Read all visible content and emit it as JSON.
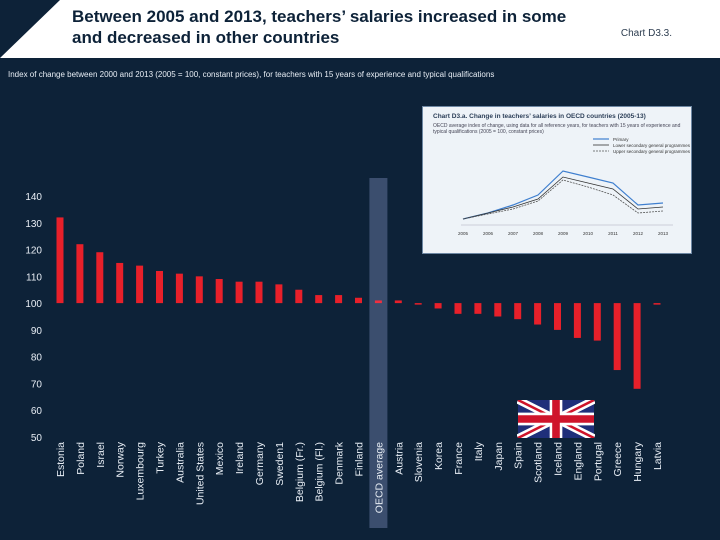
{
  "header": {
    "title": "Between 2005 and 2013, teachers’ salaries increased in some and decreased in other countries",
    "chart_id": "Chart D3.3."
  },
  "subtitle": "Index of change between 2000 and 2013 (2005 = 100, constant prices), for teachers with 15 years of experience and typical qualifications",
  "inset": {
    "title": "Chart D3.a.  Change in teachers’ salaries in OECD countries (2005-13)",
    "subtitle": "OECD average index of change, using data for all reference years, for teachers with 15 years of experience and typical qualifications (2005 = 100, constant prices)",
    "legend": [
      "Primary",
      "Lower secondary general programmes",
      "Upper secondary general programmes"
    ],
    "x_labels": [
      "2005",
      "2006",
      "2007",
      "2008",
      "2009",
      "2010",
      "2011",
      "2012",
      "2013"
    ]
  },
  "colors": {
    "bar": "#e8202a",
    "oecd_bar": "#f03040",
    "oecd_highlight": "#3b4e6e",
    "axis_text": "#e8eef5",
    "background": "#0d2238"
  },
  "icons": {
    "flag": "uk-flag-icon"
  },
  "chart_data": {
    "type": "bar",
    "title": "Between 2005 and 2013, teachers’ salaries increased in some and decreased in other countries",
    "categories": [
      "Estonia",
      "Poland",
      "Israel",
      "Norway",
      "Luxembourg",
      "Turkey",
      "Australia",
      "United States",
      "Mexico",
      "Ireland",
      "Germany",
      "Sweden1",
      "Belgium (Fr.)",
      "Belgium (Fl.)",
      "Denmark",
      "Finland",
      "OECD average",
      "Austria",
      "Slovenia",
      "Korea",
      "France",
      "Italy",
      "Japan",
      "Spain",
      "Scotland",
      "Iceland",
      "England",
      "Portugal",
      "Greece",
      "Hungary",
      "Latvia"
    ],
    "values": [
      132,
      122,
      119,
      115,
      114,
      112,
      111,
      110,
      109,
      108,
      108,
      107,
      105,
      103,
      103,
      102,
      101,
      101,
      100,
      98,
      96,
      96,
      95,
      94,
      92,
      90,
      87,
      86,
      75,
      68,
      100
    ],
    "yticks": [
      50,
      60,
      70,
      80,
      90,
      100,
      110,
      120,
      130,
      140
    ],
    "ylim": [
      50,
      140
    ],
    "highlight": "OECD average",
    "grid": false
  }
}
